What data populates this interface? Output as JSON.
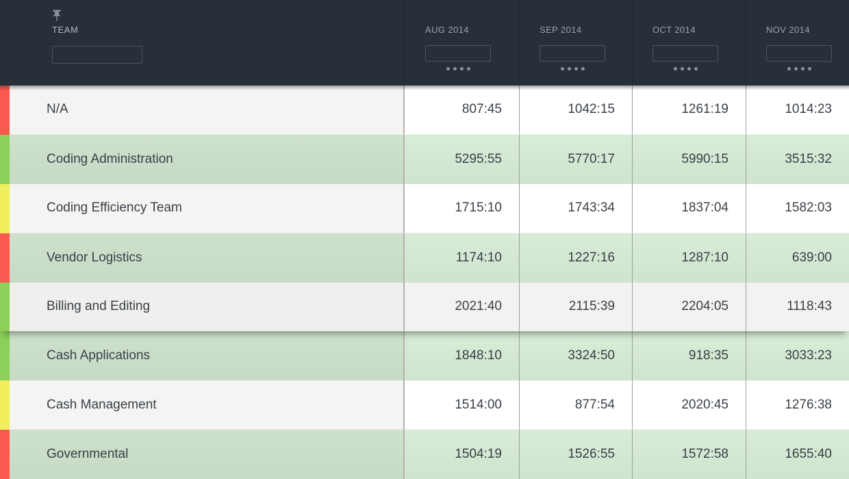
{
  "header": {
    "team_column": {
      "label": "TEAM",
      "filter_value": "",
      "pin_icon": "pin-column"
    },
    "month_columns": [
      {
        "label": "AUG 2014",
        "filter_value": ""
      },
      {
        "label": "SEP 2014",
        "filter_value": ""
      },
      {
        "label": "OCT 2014",
        "filter_value": ""
      },
      {
        "label": "NOV 2014",
        "filter_value": ""
      }
    ]
  },
  "table": {
    "rows": [
      {
        "team": "N/A",
        "status": "red",
        "tint": "light",
        "highlighted": false,
        "values": [
          "807:45",
          "1042:15",
          "1261:19",
          "1014:23"
        ]
      },
      {
        "team": "Coding Administration",
        "status": "green",
        "tint": "green",
        "highlighted": false,
        "values": [
          "5295:55",
          "5770:17",
          "5990:15",
          "3515:32"
        ]
      },
      {
        "team": "Coding Efficiency Team",
        "status": "yellow",
        "tint": "light",
        "highlighted": false,
        "values": [
          "1715:10",
          "1743:34",
          "1837:04",
          "1582:03"
        ]
      },
      {
        "team": "Vendor Logistics",
        "status": "red",
        "tint": "green",
        "highlighted": false,
        "values": [
          "1174:10",
          "1227:16",
          "1287:10",
          "639:00"
        ]
      },
      {
        "team": "Billing and Editing",
        "status": "green",
        "tint": "light",
        "highlighted": true,
        "values": [
          "2021:40",
          "2115:39",
          "2204:05",
          "1118:43"
        ]
      },
      {
        "team": "Cash Applications",
        "status": "green",
        "tint": "green",
        "highlighted": false,
        "values": [
          "1848:10",
          "3324:50",
          "918:35",
          "3033:23"
        ]
      },
      {
        "team": "Cash Management",
        "status": "yellow",
        "tint": "light",
        "highlighted": false,
        "values": [
          "1514:00",
          "877:54",
          "2020:45",
          "1276:38"
        ]
      },
      {
        "team": "Governmental",
        "status": "red",
        "tint": "green",
        "highlighted": false,
        "values": [
          "1504:19",
          "1526:55",
          "1572:58",
          "1655:40"
        ]
      }
    ]
  },
  "colors": {
    "status_red": "#f85a50",
    "status_green": "#8cd05a",
    "status_yellow": "#f1ee5e",
    "header_bg": "#272f39",
    "row_green_team": "#cbdfca",
    "row_green_value": "#d5e9d4",
    "row_light_team": "#f4f4f3",
    "row_light_value": "#ffffff"
  }
}
